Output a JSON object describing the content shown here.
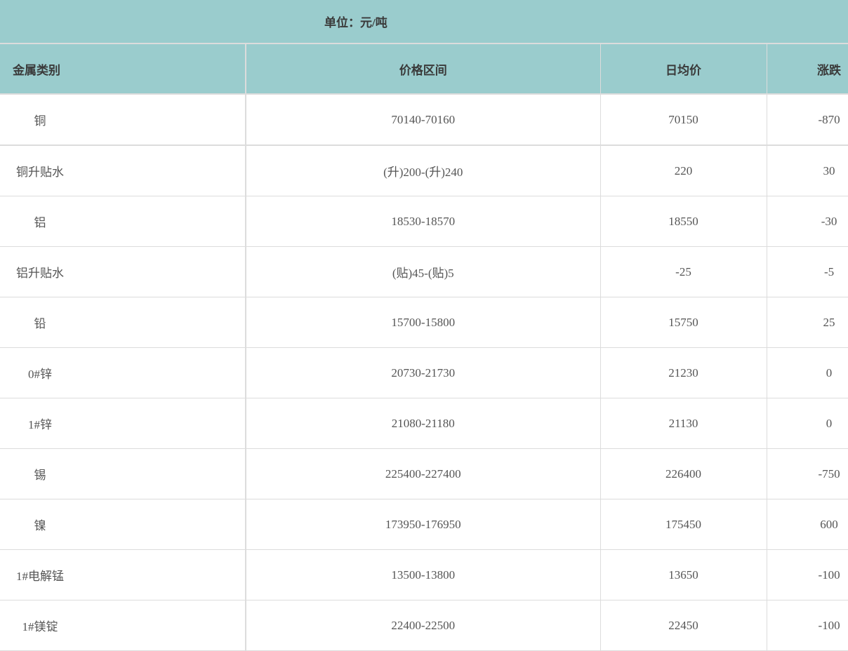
{
  "unit_label": "单位：元/吨",
  "columns": [
    "金属类别",
    "价格区间",
    "日均价",
    "涨跌"
  ],
  "colors": {
    "header_bg": "#9acccd",
    "border": "#dcdcdc",
    "text": "#555555"
  },
  "rows": [
    {
      "metal": "铜",
      "range": "70140-70160",
      "avg": "70150",
      "change": "-870"
    },
    {
      "metal": "铜升贴水",
      "range": "(升)200-(升)240",
      "avg": "220",
      "change": "30"
    },
    {
      "metal": "铝",
      "range": "18530-18570",
      "avg": "18550",
      "change": "-30"
    },
    {
      "metal": "铝升贴水",
      "range": "(贴)45-(贴)5",
      "avg": "-25",
      "change": "-5"
    },
    {
      "metal": "铅",
      "range": "15700-15800",
      "avg": "15750",
      "change": "25"
    },
    {
      "metal": "0#锌",
      "range": "20730-21730",
      "avg": "21230",
      "change": "0"
    },
    {
      "metal": "1#锌",
      "range": "21080-21180",
      "avg": "21130",
      "change": "0"
    },
    {
      "metal": "锡",
      "range": "225400-227400",
      "avg": "226400",
      "change": "-750"
    },
    {
      "metal": "镍",
      "range": "173950-176950",
      "avg": "175450",
      "change": "600"
    },
    {
      "metal": "1#电解锰",
      "range": "13500-13800",
      "avg": "13650",
      "change": "-100"
    },
    {
      "metal": "1#镁锭",
      "range": "22400-22500",
      "avg": "22450",
      "change": "-100"
    }
  ]
}
